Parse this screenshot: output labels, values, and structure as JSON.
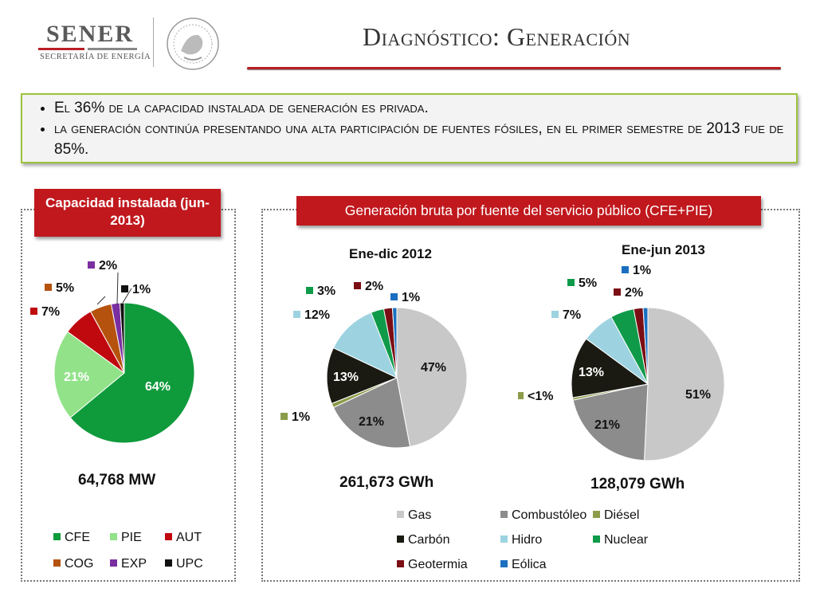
{
  "header": {
    "logo_name": "SENER",
    "logo_subtitle": "SECRETARÍA DE ENERGÍA",
    "title": "Diagnóstico: Generación"
  },
  "bullets": [
    "El 36% de la capacidad instalada de generación es privada.",
    "la generación continúa presentando una alta participación de fuentes fósiles, en el primer semestre de 2013 fue de 85%."
  ],
  "colors": {
    "accent_red": "#c0181d",
    "accent_green": "#9bc43a"
  },
  "chart_data": [
    {
      "type": "pie",
      "title": "Capacidad instalada (jun-2013)",
      "total_label": "64,768 MW",
      "categories": [
        "CFE",
        "PIE",
        "AUT",
        "COG",
        "EXP",
        "UPC"
      ],
      "values": [
        64,
        21,
        7,
        5,
        2,
        1
      ],
      "labels": [
        "64%",
        "21%",
        "7%",
        "5%",
        "2%",
        "1%"
      ],
      "colors": [
        "#0f9a3c",
        "#92e28a",
        "#c0080f",
        "#b5520d",
        "#7a2fa0",
        "#111111"
      ],
      "legend_placement": "bottom"
    },
    {
      "type": "pie",
      "title": "Generación bruta por fuente del servicio público (CFE+PIE)",
      "subtitle": "Ene-dic 2012",
      "total_label": "261,673 GWh",
      "categories": [
        "Gas",
        "Combustóleo",
        "Diésel",
        "Carbón",
        "Hidro",
        "Nuclear",
        "Geotermia",
        "Eólica"
      ],
      "values": [
        47,
        21,
        1,
        13,
        12,
        3,
        2,
        1
      ],
      "labels": [
        "47%",
        "21%",
        "1%",
        "13%",
        "12%",
        "3%",
        "2%",
        "1%"
      ],
      "colors": [
        "#c8c8c8",
        "#8c8c8c",
        "#8c9c4a",
        "#1a1a12",
        "#9dd3e0",
        "#0f9a4a",
        "#7a0e14",
        "#1a6fc0"
      ],
      "legend_placement": "bottom"
    },
    {
      "type": "pie",
      "title": "Generación bruta por fuente del servicio público (CFE+PIE)",
      "subtitle": "Ene-jun 2013",
      "total_label": "128,079 GWh",
      "categories": [
        "Gas",
        "Combustóleo",
        "Diésel",
        "Carbón",
        "Hidro",
        "Nuclear",
        "Geotermia",
        "Eólica"
      ],
      "values": [
        51,
        21,
        0.5,
        13,
        7,
        5,
        2,
        1
      ],
      "labels": [
        "51%",
        "21%",
        "<1%",
        "13%",
        "7%",
        "5%",
        "2%",
        "1%"
      ],
      "colors": [
        "#c8c8c8",
        "#8c8c8c",
        "#8c9c4a",
        "#1a1a12",
        "#9dd3e0",
        "#0f9a4a",
        "#7a0e14",
        "#1a6fc0"
      ],
      "legend_placement": "bottom"
    }
  ]
}
